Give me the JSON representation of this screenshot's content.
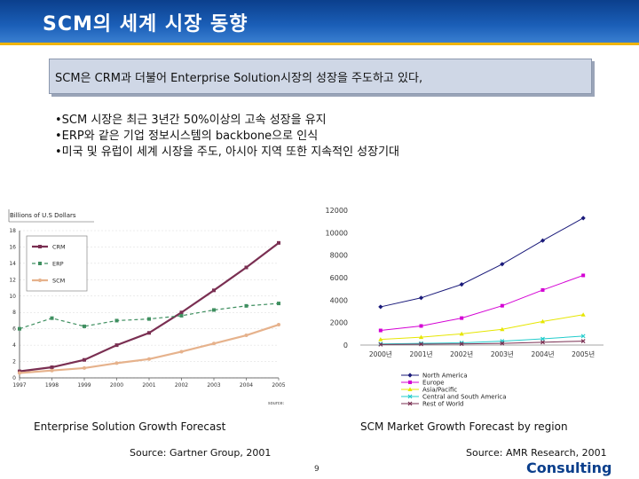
{
  "slide": {
    "title": "SCM의 세계 시장 동향",
    "callout": "SCM은 CRM과 더불어 Enterprise Solution시장의 성장을  주도하고 있다,",
    "bullets": [
      "•SCM 시장은 최근 3년간 50%이상의 고속 성장을 유지",
      "•ERP와 같은 기업 정보시스템의 backbone으로 인식",
      "•미국 및 유럽이 세계 시장을 주도, 아시아 지역 또한 지속적인 성장기대"
    ],
    "caption_left": "Enterprise Solution Growth Forecast",
    "caption_right": "SCM Market Growth Forecast by region",
    "source_left": "Source: Gartner Group, 2001",
    "source_right": "Source: AMR Research, 2001",
    "page_number": "9",
    "logo": "Consulting",
    "colors": {
      "header": "#1b5fb8",
      "stripe": "#f0b400"
    }
  },
  "chart_data": [
    {
      "type": "line",
      "ylabel": "Billions of U.S Dollars",
      "xlabel": "",
      "categories": [
        "1997",
        "1998",
        "1999",
        "2000",
        "2001",
        "2002",
        "2003",
        "2004",
        "2005"
      ],
      "ylim": [
        0,
        18
      ],
      "yticks": [
        "0",
        "2",
        "4",
        "6",
        "8",
        "10",
        "12",
        "14",
        "16",
        "18"
      ],
      "series": [
        {
          "name": "CRM",
          "color": "#7a2f52",
          "values": [
            0.8,
            1.3,
            2.2,
            4.0,
            5.5,
            8.0,
            10.7,
            13.5,
            16.5
          ]
        },
        {
          "name": "ERP",
          "color": "#3f8f60",
          "values": [
            6.0,
            7.3,
            6.3,
            7.0,
            7.2,
            7.6,
            8.3,
            8.8,
            9.1
          ]
        },
        {
          "name": "SCM",
          "color": "#e6b28c",
          "values": [
            0.6,
            0.9,
            1.2,
            1.8,
            2.3,
            3.2,
            4.2,
            5.2,
            6.5
          ]
        }
      ],
      "note": "source: "
    },
    {
      "type": "line",
      "categories": [
        "2000년",
        "2001년",
        "2002년",
        "2003년",
        "2004년",
        "2005년"
      ],
      "ylim": [
        0,
        12000
      ],
      "yticks": [
        "0",
        "2000",
        "4000",
        "6000",
        "8000",
        "10000",
        "12000"
      ],
      "series": [
        {
          "name": "North America",
          "color": "#1a1a7a",
          "values": [
            3400,
            4200,
            5400,
            7200,
            9300,
            11300
          ]
        },
        {
          "name": "Europe",
          "color": "#d400d4",
          "values": [
            1300,
            1700,
            2400,
            3500,
            4900,
            6200
          ]
        },
        {
          "name": "Asia/Pacific",
          "color": "#e6e600",
          "values": [
            500,
            700,
            1000,
            1400,
            2100,
            2700
          ]
        },
        {
          "name": "Central and South America",
          "color": "#22cccc",
          "values": [
            100,
            150,
            200,
            350,
            550,
            800
          ]
        },
        {
          "name": "Rest of World",
          "color": "#7a2f52",
          "values": [
            50,
            80,
            100,
            150,
            250,
            350
          ]
        }
      ]
    }
  ]
}
